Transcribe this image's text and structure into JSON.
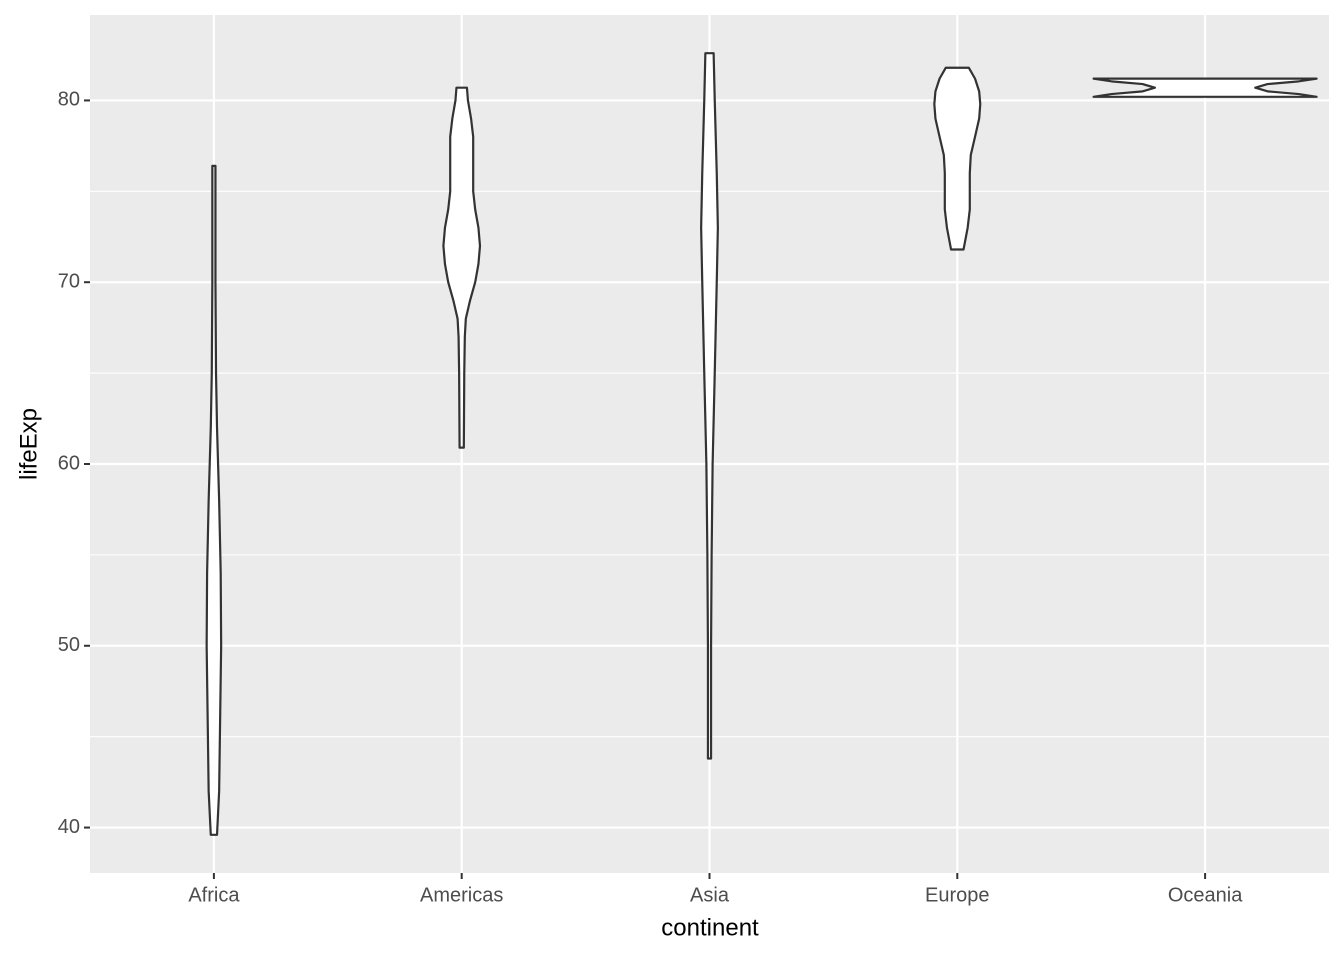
{
  "chart_data": {
    "type": "violin",
    "x_label": "continent",
    "y_label": "lifeExp",
    "categories": [
      "Africa",
      "Americas",
      "Asia",
      "Europe",
      "Oceania"
    ],
    "series": [
      {
        "name": "Africa",
        "y": [
          39.6,
          42,
          46,
          50,
          54,
          58,
          62,
          65,
          70,
          76.4
        ],
        "density": [
          0.028,
          0.047,
          0.056,
          0.065,
          0.061,
          0.047,
          0.028,
          0.019,
          0.014,
          0.014
        ]
      },
      {
        "name": "Americas",
        "y": [
          60.9,
          65,
          67,
          68,
          69,
          70,
          71,
          72,
          73,
          74,
          75,
          76,
          78,
          79,
          80,
          80.7
        ],
        "density": [
          0.019,
          0.023,
          0.028,
          0.037,
          0.075,
          0.121,
          0.15,
          0.164,
          0.15,
          0.121,
          0.103,
          0.103,
          0.103,
          0.084,
          0.056,
          0.047
        ]
      },
      {
        "name": "Asia",
        "y": [
          43.8,
          50,
          55,
          60,
          65,
          70,
          73,
          76,
          80,
          82.6
        ],
        "density": [
          0.014,
          0.014,
          0.019,
          0.028,
          0.047,
          0.065,
          0.075,
          0.065,
          0.047,
          0.037
        ]
      },
      {
        "name": "Europe",
        "y": [
          71.8,
          73,
          74,
          76,
          77,
          78,
          79,
          79.8,
          80.5,
          81.2,
          81.8
        ],
        "density": [
          0.056,
          0.093,
          0.112,
          0.112,
          0.121,
          0.159,
          0.196,
          0.206,
          0.196,
          0.159,
          0.103
        ]
      },
      {
        "name": "Oceania",
        "y": [
          80.2,
          80.35,
          80.5,
          80.7,
          80.9,
          81.05,
          81.2
        ],
        "density": [
          1.0,
          0.84,
          0.56,
          0.45,
          0.56,
          0.84,
          1.0
        ]
      }
    ],
    "ylim": [
      37.5,
      84.7
    ],
    "yticks": [
      40,
      50,
      60,
      70,
      80
    ],
    "y_minor_ticks": [
      45,
      55,
      65,
      75
    ],
    "grid": true,
    "color": "#333333"
  }
}
